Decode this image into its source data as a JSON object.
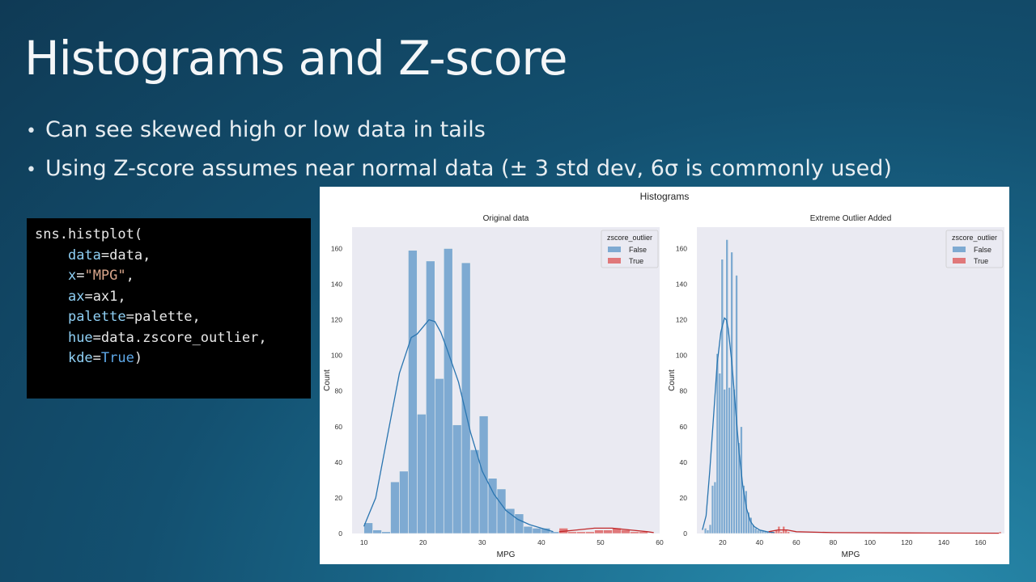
{
  "slide": {
    "title": "Histograms and Z-score",
    "bullets": [
      "Can see skewed high or low data in tails",
      "Using Z-score assumes near normal data (± 3 std dev, 6σ is commonly used)"
    ]
  },
  "code": {
    "line1": "sns.histplot(",
    "args": [
      {
        "key": "data",
        "val": "data",
        "kind": "plain"
      },
      {
        "key": "x",
        "val": "\"MPG\"",
        "kind": "str"
      },
      {
        "key": "ax",
        "val": "ax1",
        "kind": "plain"
      },
      {
        "key": "palette",
        "val": "palette",
        "kind": "plain"
      },
      {
        "key": "hue",
        "val": "data.zscore_outlier",
        "kind": "plain"
      },
      {
        "key": "kde",
        "val": "True",
        "kind": "bool"
      }
    ]
  },
  "colors": {
    "false": "#7eaad2",
    "true": "#e0787a",
    "kde_false": "#2a75b0",
    "kde_true": "#c0292b",
    "plot_bg": "#eaeaf2"
  },
  "chart_data": [
    {
      "type": "bar",
      "suptitle": "Histograms",
      "title": "Original data",
      "xlabel": "MPG",
      "ylabel": "Count",
      "xlim": [
        8,
        60
      ],
      "ylim": [
        0,
        172
      ],
      "xticks": [
        10,
        20,
        30,
        40,
        50,
        60
      ],
      "yticks": [
        0,
        20,
        40,
        60,
        80,
        100,
        120,
        140,
        160
      ],
      "legend": {
        "title": "zscore_outlier",
        "entries": [
          "False",
          "True"
        ],
        "placement": "top-right"
      },
      "bin_width": 1.5,
      "series": [
        {
          "name": "False",
          "x": [
            10,
            11.5,
            13,
            14.5,
            16,
            17.5,
            19,
            20.5,
            22,
            23.5,
            25,
            26.5,
            28,
            29.5,
            31,
            32.5,
            34,
            35.5,
            37,
            38.5,
            40,
            41.5
          ],
          "values": [
            6,
            2,
            1,
            29,
            35,
            159,
            67,
            153,
            87,
            160,
            61,
            152,
            47,
            66,
            31,
            25,
            14,
            11,
            4,
            3,
            3,
            1
          ]
        },
        {
          "name": "True",
          "x": [
            43,
            44.5,
            46,
            47.5,
            49,
            50.5,
            52,
            53.5,
            55,
            56.5
          ],
          "values": [
            3,
            1,
            1,
            1,
            2,
            2,
            3,
            2,
            1,
            1
          ]
        }
      ],
      "kde": [
        {
          "name": "False",
          "x": [
            10,
            12,
            14,
            16,
            18,
            19,
            20,
            21,
            22,
            23,
            24,
            26,
            28,
            30,
            32,
            34,
            36,
            38,
            40,
            42
          ],
          "y": [
            4,
            20,
            55,
            90,
            110,
            112,
            116,
            120,
            119,
            113,
            104,
            85,
            57,
            35,
            22,
            13,
            8,
            5,
            3,
            1
          ]
        },
        {
          "name": "True",
          "x": [
            43,
            46,
            49,
            52,
            55,
            58,
            59
          ],
          "y": [
            1,
            2,
            3,
            3,
            2,
            1,
            0.5
          ]
        }
      ]
    },
    {
      "type": "bar",
      "title": "Extreme Outlier Added",
      "xlabel": "MPG",
      "ylabel": "Count",
      "xlim": [
        6,
        173
      ],
      "ylim": [
        0,
        172
      ],
      "xticks": [
        20,
        40,
        60,
        80,
        100,
        120,
        140,
        160
      ],
      "yticks": [
        0,
        20,
        40,
        60,
        80,
        100,
        120,
        140,
        160
      ],
      "legend": {
        "title": "zscore_outlier",
        "entries": [
          "False",
          "True"
        ],
        "placement": "top-right"
      },
      "bin_width": 1.3,
      "series": [
        {
          "name": "False",
          "x": [
            10,
            11.3,
            12.6,
            13.9,
            15.2,
            16.5,
            17.8,
            19.1,
            20.4,
            21.7,
            23,
            24.3,
            25.6,
            26.9,
            28.2,
            29.5,
            30.8,
            32.1,
            33.4,
            34.7,
            36,
            37.3,
            38.6,
            39.9,
            41.2,
            42.5,
            43.8,
            45.1
          ],
          "values": [
            3,
            2,
            5,
            27,
            29,
            101,
            90,
            154,
            81,
            165,
            82,
            158,
            81,
            145,
            51,
            60,
            27,
            24,
            12,
            9,
            5,
            3,
            2,
            2,
            2,
            1,
            1,
            1
          ]
        },
        {
          "name": "True",
          "x": [
            46,
            47.3,
            48.6,
            49.9,
            51.2,
            52.5,
            53.8,
            55.1,
            170
          ],
          "values": [
            1,
            1,
            2,
            4,
            1,
            4,
            2,
            1,
            1
          ]
        }
      ],
      "kde": [
        {
          "name": "False",
          "x": [
            9,
            11,
            13,
            15,
            17,
            19,
            21,
            22,
            23,
            25,
            27,
            29,
            31,
            33,
            35,
            37,
            40,
            44,
            48
          ],
          "y": [
            2,
            10,
            35,
            65,
            95,
            113,
            121,
            120,
            115,
            96,
            70,
            45,
            26,
            14,
            7,
            4,
            2,
            1,
            0.5
          ]
        },
        {
          "name": "True",
          "x": [
            45,
            50,
            55,
            60,
            80,
            120,
            170
          ],
          "y": [
            1,
            2,
            2,
            1,
            0.5,
            0.3,
            0.2
          ]
        }
      ]
    }
  ]
}
